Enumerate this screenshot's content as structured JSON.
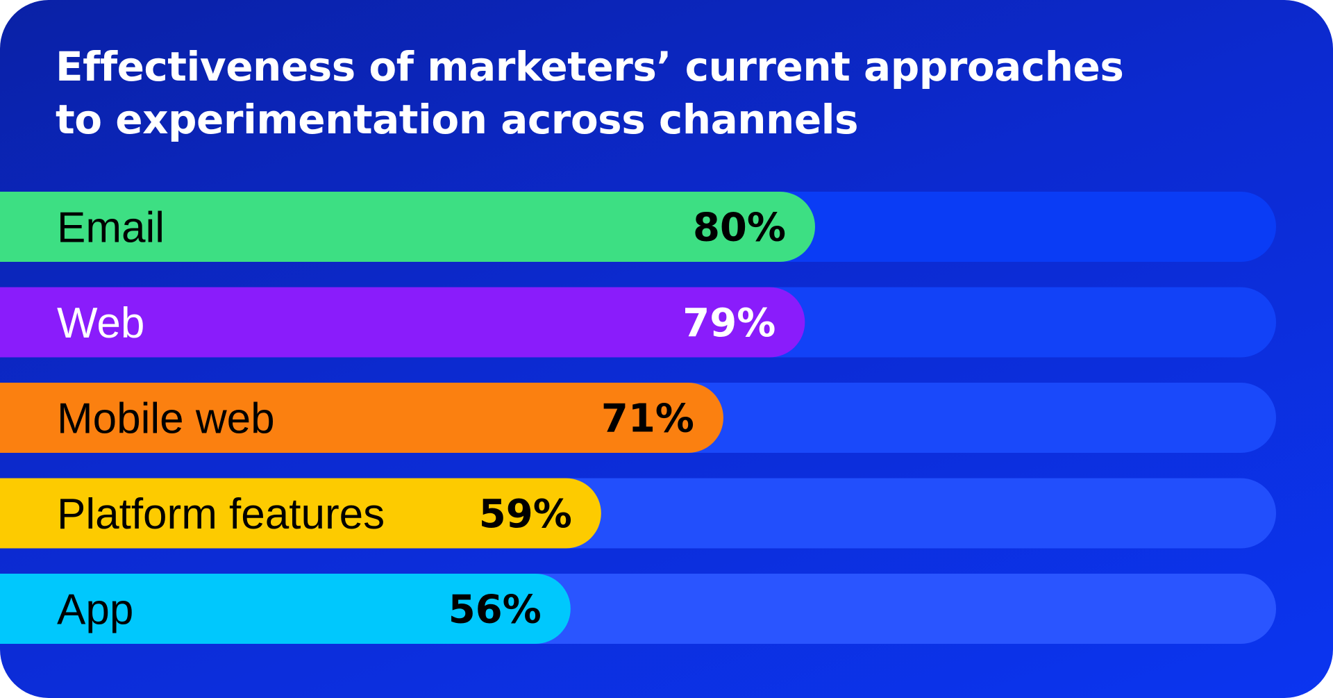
{
  "chart_data": {
    "type": "bar",
    "orientation": "horizontal",
    "title": "Effectiveness of marketers’ current approaches to experimentation across channels",
    "title_lines": [
      "Effectiveness of marketers’ current approaches",
      "to experimentation across channels"
    ],
    "categories": [
      "Email",
      "Web",
      "Mobile web",
      "Platform features",
      "App"
    ],
    "values": [
      80,
      79,
      71,
      59,
      56
    ],
    "value_labels": [
      "80%",
      "79%",
      "71%",
      "59%",
      "56%"
    ],
    "unit": "%",
    "xlim": [
      0,
      100
    ],
    "grid": false,
    "legend": "none",
    "bar_colors": [
      "#3ddf83",
      "#8a1cfb",
      "#fb8010",
      "#fdcb00",
      "#00c8fd"
    ],
    "label_colors": [
      "#000000",
      "#ffffff",
      "#000000",
      "#000000",
      "#000000"
    ],
    "track_colors": [
      "#0a3cf5",
      "#1242f7",
      "#1a49fa",
      "#224ffc",
      "#2a55ff"
    ]
  },
  "colors": {
    "background": "#0c2ad0",
    "title": "#ffffff"
  }
}
